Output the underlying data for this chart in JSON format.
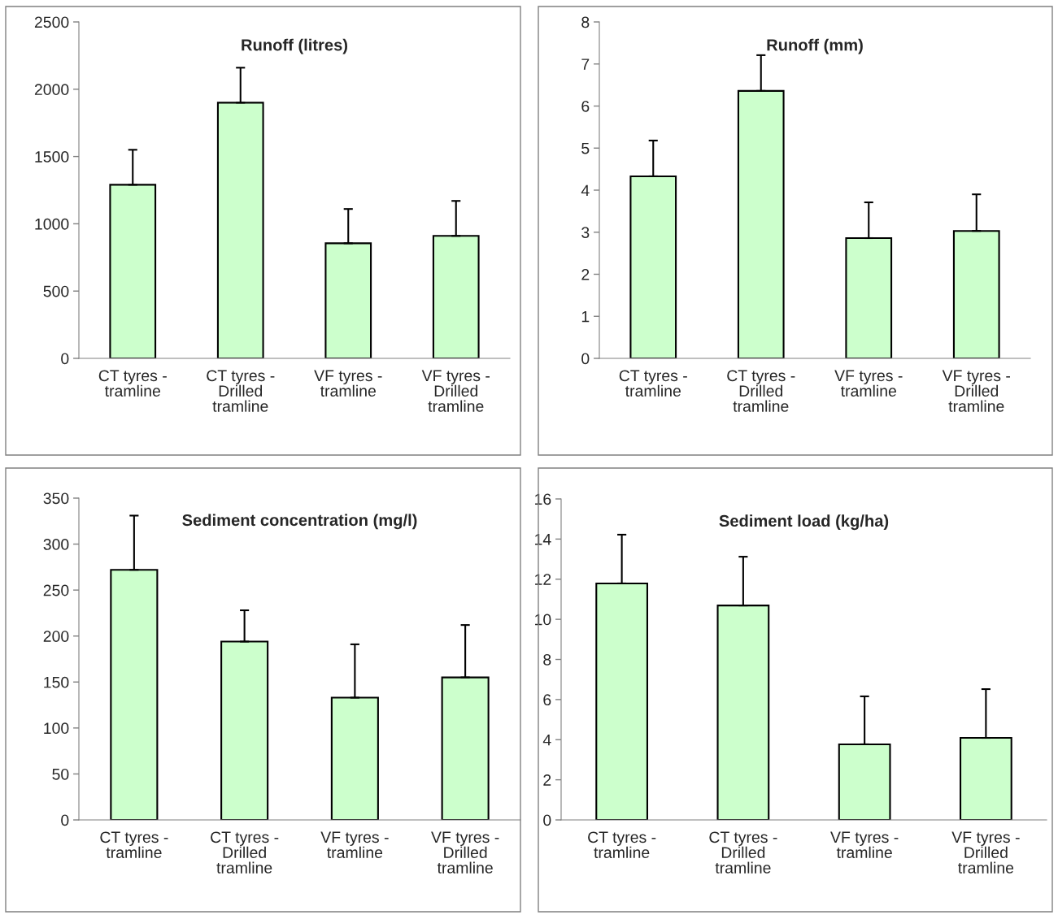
{
  "chart_data": [
    {
      "type": "bar",
      "title": "Runoff (litres)",
      "categories": [
        "CT tyres -\ntramline",
        "CT tyres -\nDrilled\ntramline",
        "VF tyres -\ntramline",
        "VF tyres -\nDrilled\ntramline"
      ],
      "values": [
        1290,
        1900,
        855,
        910
      ],
      "errors": [
        [
          1290,
          1550
        ],
        [
          1900,
          2160
        ],
        [
          855,
          1110
        ],
        [
          910,
          1170
        ]
      ],
      "color": "#ccffcc",
      "ylim": [
        0,
        2500
      ],
      "yticks": [
        0,
        500,
        1000,
        1500,
        2000,
        2500
      ],
      "grid": false,
      "legend": false
    },
    {
      "type": "bar",
      "title": "Runoff (mm)",
      "categories": [
        "CT tyres -\ntramline",
        "CT tyres -\nDrilled\ntramline",
        "VF tyres -\ntramline",
        "VF tyres -\nDrilled\ntramline"
      ],
      "values": [
        4.33,
        6.36,
        2.86,
        3.03
      ],
      "errors": [
        [
          4.33,
          5.18
        ],
        [
          6.36,
          7.21
        ],
        [
          2.86,
          3.71
        ],
        [
          3.03,
          3.9
        ]
      ],
      "color": "#ccffcc",
      "ylim": [
        0,
        8
      ],
      "yticks": [
        0,
        1,
        2,
        3,
        4,
        5,
        6,
        7,
        8
      ],
      "grid": false,
      "legend": false
    },
    {
      "type": "bar",
      "title": "Sediment concentration (mg/l)",
      "categories": [
        "CT tyres -\ntramline",
        "CT tyres -\nDrilled\ntramline",
        "VF tyres -\ntramline",
        "VF tyres -\nDrilled\ntramline"
      ],
      "values": [
        272,
        194,
        133,
        155
      ],
      "errors": [
        [
          272,
          331
        ],
        [
          194,
          228
        ],
        [
          133,
          191
        ],
        [
          155,
          212
        ]
      ],
      "color": "#ccffcc",
      "ylim": [
        0,
        350
      ],
      "yticks": [
        0,
        50,
        100,
        150,
        200,
        250,
        300,
        350
      ],
      "grid": false,
      "legend": false
    },
    {
      "type": "bar",
      "title": "Sediment load (kg/ha)",
      "categories": [
        "CT tyres -\ntramline",
        "CT tyres -\nDrilled\ntramline",
        "VF tyres -\ntramline",
        "VF tyres -\nDrilled\ntramline"
      ],
      "values": [
        11.79,
        10.69,
        3.77,
        4.09
      ],
      "errors": [
        [
          11.79,
          14.22
        ],
        [
          10.69,
          13.12
        ],
        [
          3.77,
          6.16
        ],
        [
          4.09,
          6.52
        ]
      ],
      "color": "#ccffcc",
      "ylim": [
        0,
        16
      ],
      "yticks": [
        0,
        2,
        4,
        6,
        8,
        10,
        12,
        14,
        16
      ],
      "grid": false,
      "legend": false
    }
  ]
}
